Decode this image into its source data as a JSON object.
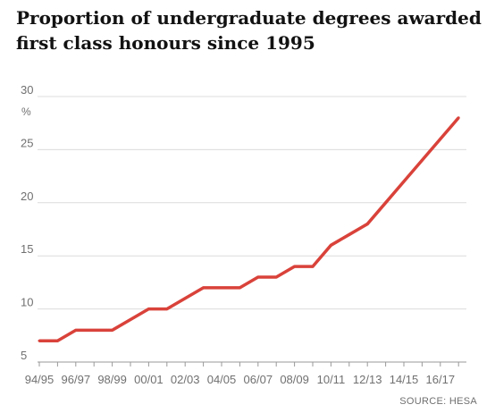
{
  "chart_data": {
    "type": "line",
    "title": "Proportion of undergraduate degrees awarded first class honours since 1995",
    "ylabel": "%",
    "xlabel": "",
    "ylim": [
      5,
      30
    ],
    "yticks": [
      "30",
      "25",
      "20",
      "15",
      "10",
      "5"
    ],
    "xticks": [
      "94/95",
      "96/97",
      "98/99",
      "00/01",
      "02/03",
      "04/05",
      "06/07",
      "08/09",
      "10/11",
      "12/13",
      "14/15",
      "16/17"
    ],
    "grid": true,
    "source": "SOURCE: HESA",
    "colors": {
      "line": "#d9423a",
      "grid": "#dcdcdc",
      "axis": "#999999",
      "text": "#707070"
    },
    "series": [
      {
        "x": [
          "94/95",
          "95/96",
          "96/97",
          "97/98",
          "98/99",
          "99/00",
          "00/01",
          "01/02",
          "02/03",
          "03/04",
          "04/05",
          "05/06",
          "06/07",
          "07/08",
          "08/09",
          "09/10",
          "10/11",
          "11/12",
          "12/13",
          "13/14",
          "14/15",
          "15/16",
          "16/17",
          "17/18"
        ],
        "values": [
          7,
          7,
          8,
          8,
          8,
          9,
          10,
          10,
          11,
          12,
          12,
          12,
          13,
          13,
          14,
          14,
          16,
          17,
          18,
          20,
          22,
          24,
          26,
          28
        ]
      }
    ]
  }
}
